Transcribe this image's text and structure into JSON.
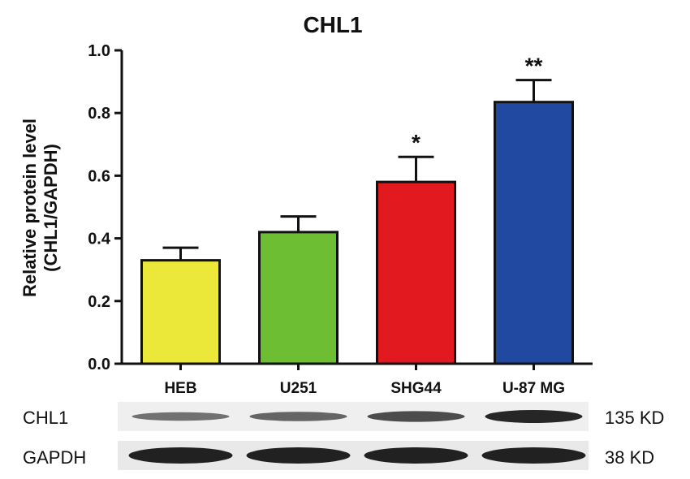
{
  "chart_data": {
    "type": "bar",
    "title": "CHL1",
    "xlabel": "",
    "ylabel": [
      "Relative protein level",
      "(CHL1/GAPDH)"
    ],
    "ylim": [
      0,
      1.0
    ],
    "yticks": [
      "0.0",
      "0.2",
      "0.4",
      "0.6",
      "0.8",
      "1.0"
    ],
    "categories": [
      "HEB",
      "U251",
      "SHG44",
      "U-87 MG"
    ],
    "values": [
      0.33,
      0.42,
      0.58,
      0.835
    ],
    "errors": [
      0.04,
      0.05,
      0.08,
      0.07
    ],
    "significance": [
      "",
      "",
      "*",
      "**"
    ],
    "colors": [
      "#ece83a",
      "#6dbe32",
      "#e21a1f",
      "#2249a2"
    ],
    "grid": false,
    "legend": "none"
  },
  "blot": {
    "rows": [
      {
        "protein": "CHL1",
        "size": "135 KD"
      },
      {
        "protein": "GAPDH",
        "size": "38 KD"
      }
    ]
  }
}
